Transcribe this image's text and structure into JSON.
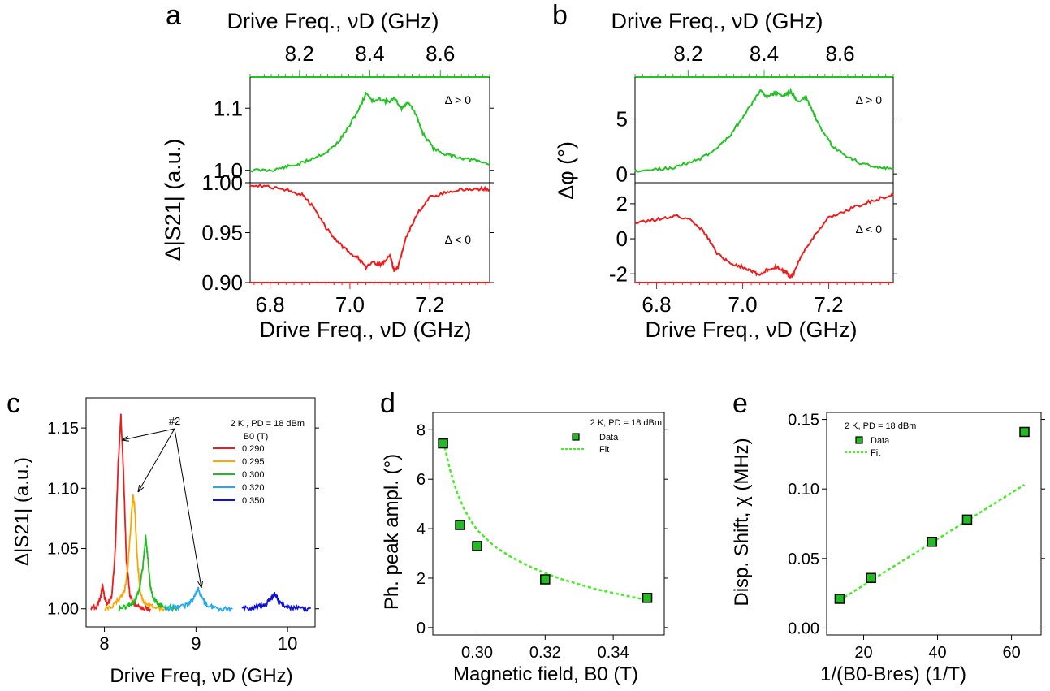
{
  "panel_letters": [
    "a",
    "b",
    "c",
    "d",
    "e"
  ],
  "colors": {
    "green": "#22c322",
    "red": "#ee1c1c",
    "orange": "#ffa500",
    "mid_green": "#22bb22",
    "light_blue": "#22aaee",
    "blue": "#1111dd",
    "marker_fill": "#22bb22",
    "fit": "#44ee22"
  },
  "chart_data": [
    {
      "panel": "a",
      "type": "line",
      "top_xlabel": "Drive Freq., νD (GHz)",
      "top_xticks": [
        "8.2",
        "8.4",
        "8.6"
      ],
      "top_xlim": [
        8.06,
        8.74
      ],
      "bottom_xlabel": "Drive Freq., νD (GHz)",
      "bottom_xticks": [
        "6.8",
        "7.0",
        "7.2"
      ],
      "bottom_xlim": [
        6.75,
        7.35
      ],
      "ylabel": "Δ|S21| (a.u.)",
      "upper": {
        "annotation": "Δ > 0",
        "yticks": [
          "1.0",
          "1.1"
        ],
        "ylim": [
          0.98,
          1.15
        ],
        "series": {
          "color": "green",
          "x": [
            8.06,
            8.12,
            8.16,
            8.2,
            8.24,
            8.28,
            8.31,
            8.34,
            8.37,
            8.39,
            8.41,
            8.43,
            8.45,
            8.47,
            8.49,
            8.51,
            8.53,
            8.55,
            8.58,
            8.62,
            8.66,
            8.7,
            8.74
          ],
          "y": [
            1.0,
            1.0,
            1.005,
            1.01,
            1.02,
            1.03,
            1.045,
            1.07,
            1.1,
            1.125,
            1.11,
            1.115,
            1.11,
            1.115,
            1.1,
            1.11,
            1.09,
            1.06,
            1.035,
            1.025,
            1.02,
            1.015,
            1.01
          ]
        }
      },
      "lower": {
        "annotation": "Δ < 0",
        "yticks": [
          "0.90",
          "0.95",
          "1.00"
        ],
        "ylim": [
          0.9,
          1.0
        ],
        "series": {
          "color": "red",
          "x": [
            6.75,
            6.8,
            6.84,
            6.88,
            6.91,
            6.94,
            6.97,
            7.0,
            7.02,
            7.04,
            7.06,
            7.08,
            7.1,
            7.11,
            7.12,
            7.14,
            7.17,
            7.2,
            7.24,
            7.28,
            7.32,
            7.35
          ],
          "y": [
            0.998,
            0.996,
            0.993,
            0.988,
            0.975,
            0.955,
            0.94,
            0.93,
            0.925,
            0.915,
            0.92,
            0.918,
            0.928,
            0.912,
            0.915,
            0.945,
            0.97,
            0.985,
            0.99,
            0.993,
            0.994,
            0.993
          ]
        }
      }
    },
    {
      "panel": "b",
      "type": "line",
      "top_xlabel": "Drive Freq., νD (GHz)",
      "top_xticks": [
        "8.2",
        "8.4",
        "8.6"
      ],
      "top_xlim": [
        8.06,
        8.74
      ],
      "bottom_xlabel": "Drive Freq., νD (GHz)",
      "bottom_xticks": [
        "6.8",
        "7.0",
        "7.2"
      ],
      "bottom_xlim": [
        6.75,
        7.35
      ],
      "ylabel": "Δφ (°)",
      "upper": {
        "annotation": "Δ > 0",
        "yticks": [
          "0",
          "5"
        ],
        "ylim": [
          -0.8,
          8.8
        ],
        "series": {
          "color": "green",
          "x": [
            8.06,
            8.12,
            8.16,
            8.2,
            8.24,
            8.28,
            8.31,
            8.34,
            8.37,
            8.39,
            8.41,
            8.43,
            8.45,
            8.47,
            8.49,
            8.51,
            8.53,
            8.55,
            8.58,
            8.62,
            8.66,
            8.7,
            8.74
          ],
          "y": [
            0.3,
            0.4,
            0.6,
            1.0,
            1.5,
            2.5,
            3.5,
            5.0,
            6.5,
            7.6,
            7.0,
            7.4,
            7.1,
            7.5,
            6.5,
            7.0,
            5.5,
            4.0,
            2.5,
            1.5,
            0.9,
            0.6,
            0.5
          ]
        }
      },
      "lower": {
        "annotation": "Δ < 0",
        "yticks": [
          "-2",
          "0",
          "2"
        ],
        "ylim": [
          -2.5,
          3.2
        ],
        "series": {
          "color": "red",
          "x": [
            6.75,
            6.8,
            6.84,
            6.88,
            6.91,
            6.94,
            6.97,
            7.0,
            7.02,
            7.04,
            7.06,
            7.08,
            7.1,
            7.11,
            7.12,
            7.14,
            7.17,
            7.2,
            7.24,
            7.28,
            7.32,
            7.35
          ],
          "y": [
            0.9,
            1.1,
            1.3,
            1.1,
            0.4,
            -0.8,
            -1.4,
            -1.6,
            -1.8,
            -2.1,
            -1.7,
            -1.6,
            -1.9,
            -2.2,
            -1.9,
            -0.8,
            0.3,
            1.2,
            1.6,
            2.0,
            2.3,
            2.5
          ]
        }
      }
    },
    {
      "panel": "c",
      "type": "line",
      "xlabel": "Drive Freq, νD (GHz)",
      "ylabel": "Δ|S21| (a.u.)",
      "xticks": [
        "8",
        "9",
        "10"
      ],
      "xlim": [
        7.8,
        10.3
      ],
      "yticks": [
        "1.00",
        "1.05",
        "1.10",
        "1.15"
      ],
      "ylim": [
        0.985,
        1.175
      ],
      "legend_header": "2 K , PD = 18 dBm",
      "legend_title": "B0 (T)",
      "annotation": "#2",
      "series": [
        {
          "name": "0.290",
          "color": "red",
          "x": [
            7.85,
            7.92,
            7.96,
            7.98,
            8.0,
            8.03,
            8.08,
            8.12,
            8.15,
            8.18,
            8.21,
            8.24,
            8.28,
            8.32,
            8.36,
            8.42,
            8.5
          ],
          "y": [
            1.0,
            1.002,
            1.01,
            1.02,
            1.01,
            1.004,
            1.01,
            1.05,
            1.12,
            1.16,
            1.11,
            1.04,
            1.01,
            1.004,
            1.002,
            1.001,
            1.0
          ]
        },
        {
          "name": "0.295",
          "color": "orange",
          "x": [
            8.0,
            8.1,
            8.18,
            8.22,
            8.25,
            8.28,
            8.31,
            8.33,
            8.36,
            8.39,
            8.43,
            8.5,
            8.6,
            8.65
          ],
          "y": [
            1.0,
            1.003,
            1.01,
            1.015,
            1.03,
            1.06,
            1.095,
            1.085,
            1.04,
            1.015,
            1.006,
            1.003,
            1.001,
            1.0
          ]
        },
        {
          "name": "0.300",
          "color": "mid_green",
          "x": [
            8.15,
            8.25,
            8.32,
            8.38,
            8.42,
            8.45,
            8.47,
            8.5,
            8.53,
            8.58,
            8.65,
            8.72,
            8.8
          ],
          "y": [
            1.0,
            1.002,
            1.005,
            1.015,
            1.035,
            1.06,
            1.045,
            1.02,
            1.01,
            1.004,
            1.002,
            1.001,
            1.0
          ]
        },
        {
          "name": "0.320",
          "color": "light_blue",
          "x": [
            8.65,
            8.75,
            8.85,
            8.92,
            8.97,
            9.02,
            9.07,
            9.12,
            9.2,
            9.3,
            9.4
          ],
          "y": [
            1.0,
            1.001,
            1.002,
            1.004,
            1.008,
            1.017,
            1.008,
            1.003,
            1.001,
            1.0,
            1.0
          ]
        },
        {
          "name": "0.350",
          "color": "blue",
          "x": [
            9.5,
            9.6,
            9.7,
            9.76,
            9.82,
            9.86,
            9.9,
            9.96,
            10.05,
            10.15,
            10.25
          ],
          "y": [
            1.0,
            1.001,
            1.002,
            1.004,
            1.009,
            1.013,
            1.007,
            1.003,
            1.001,
            1.0,
            1.0
          ]
        }
      ]
    },
    {
      "panel": "d",
      "type": "scatter",
      "xlabel": "Magnetic field, B0 (T)",
      "ylabel": "Ph. peak ampl. (°)",
      "xticks": [
        "0.30",
        "0.32",
        "0.34"
      ],
      "xlim": [
        0.287,
        0.355
      ],
      "yticks": [
        "0",
        "2",
        "4",
        "6",
        "8"
      ],
      "ylim": [
        -0.3,
        8.7
      ],
      "legend_header": "2 K, PD = 18 dBm",
      "series": [
        {
          "name": "Data",
          "x": [
            0.29,
            0.295,
            0.3,
            0.32,
            0.35
          ],
          "y": [
            7.45,
            4.15,
            3.3,
            1.95,
            1.2
          ]
        }
      ],
      "fit": {
        "name": "Fit",
        "x": [
          0.2905,
          0.292,
          0.294,
          0.296,
          0.298,
          0.3,
          0.305,
          0.31,
          0.315,
          0.32,
          0.325,
          0.33,
          0.335,
          0.34,
          0.345,
          0.35
        ],
        "y": [
          7.3,
          6.4,
          5.5,
          4.85,
          4.35,
          3.95,
          3.3,
          2.85,
          2.5,
          2.2,
          1.95,
          1.75,
          1.55,
          1.4,
          1.25,
          1.12
        ]
      }
    },
    {
      "panel": "e",
      "type": "scatter",
      "xlabel": "1/(B0-Bres) (1/T)",
      "ylabel": "Disp. Shift, χ (MHz)",
      "xticks": [
        "20",
        "40",
        "60"
      ],
      "xlim": [
        10,
        68
      ],
      "yticks": [
        "0.00",
        "0.05",
        "0.10",
        "0.15"
      ],
      "ylim": [
        -0.005,
        0.155
      ],
      "legend_header": "2 K, PD = 18 dBm",
      "series": [
        {
          "name": "Data",
          "x": [
            13.5,
            22,
            38.5,
            48,
            63.5
          ],
          "y": [
            0.021,
            0.036,
            0.062,
            0.078,
            0.141
          ]
        }
      ],
      "fit": {
        "name": "Fit",
        "x": [
          13.5,
          63.5
        ],
        "y": [
          0.02,
          0.103
        ]
      }
    }
  ]
}
